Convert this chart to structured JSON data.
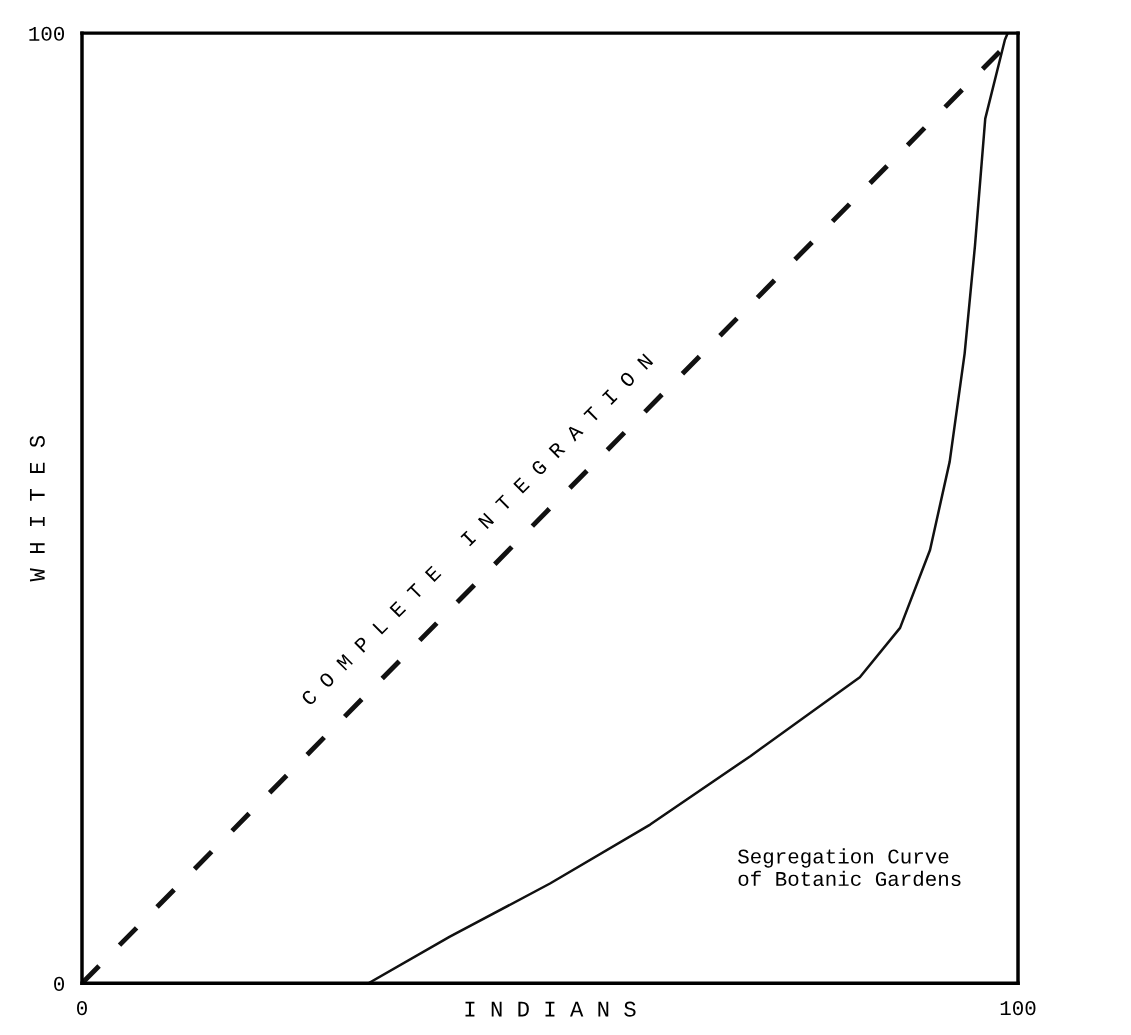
{
  "chart_data": {
    "type": "line",
    "xlabel": "I N D I A N S",
    "ylabel": "W H I T E S",
    "xlim": [
      0,
      100
    ],
    "ylim": [
      0,
      100
    ],
    "xticks": [
      0,
      100
    ],
    "yticks": [
      0,
      100
    ],
    "legend": false,
    "marker": "none",
    "series": [
      {
        "color": "#111111",
        "line_style": "dashed",
        "x": [
          0,
          100
        ],
        "values": [
          0,
          100
        ]
      },
      {
        "color": "#111111",
        "line_style": "solid",
        "x": [
          30.6,
          39.3,
          50.0,
          60.7,
          71.4,
          83.1,
          87.4,
          90.6,
          92.7,
          94.3,
          95.4,
          96.5,
          98.6,
          98.9
        ],
        "values": [
          0,
          4.9,
          10.5,
          16.7,
          23.9,
          32.2,
          37.4,
          45.6,
          54.9,
          66.3,
          77.6,
          91.0,
          99.3,
          100
        ]
      }
    ],
    "annotations": [
      {
        "text": "C O M P L E T E   I N T E G R A T I O N",
        "x": 45,
        "y": 45
      },
      "Segregation Curve\nof Botanic Gardens"
    ]
  }
}
